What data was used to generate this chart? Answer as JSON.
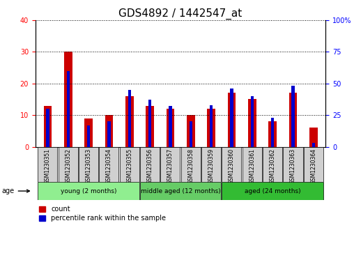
{
  "title": "GDS4892 / 1442547_at",
  "samples": [
    "GSM1230351",
    "GSM1230352",
    "GSM1230353",
    "GSM1230354",
    "GSM1230355",
    "GSM1230356",
    "GSM1230357",
    "GSM1230358",
    "GSM1230359",
    "GSM1230360",
    "GSM1230361",
    "GSM1230362",
    "GSM1230363",
    "GSM1230364"
  ],
  "counts": [
    13,
    30,
    9,
    10,
    16,
    13,
    12,
    10,
    12,
    17,
    15,
    8,
    17,
    6
  ],
  "percentiles": [
    30,
    60,
    17,
    20,
    45,
    37,
    32,
    20,
    33,
    46,
    40,
    23,
    48,
    3
  ],
  "left_ylim": [
    0,
    40
  ],
  "right_ylim": [
    0,
    100
  ],
  "left_yticks": [
    0,
    10,
    20,
    30,
    40
  ],
  "right_yticks": [
    0,
    25,
    50,
    75,
    100
  ],
  "right_yticklabels": [
    "0",
    "25",
    "50",
    "75",
    "100%"
  ],
  "bar_color_red": "#cc0000",
  "bar_color_blue": "#0000cc",
  "groups": [
    {
      "label": "young (2 months)",
      "start": 0,
      "end": 4,
      "color": "#90ee90"
    },
    {
      "label": "middle aged (12 months)",
      "start": 5,
      "end": 8,
      "color": "#66cc66"
    },
    {
      "label": "aged (24 months)",
      "start": 9,
      "end": 13,
      "color": "#33bb33"
    }
  ],
  "group_box_color": "#d0d0d0",
  "legend_count_label": "count",
  "legend_percentile_label": "percentile rank within the sample",
  "age_label": "age",
  "title_fontsize": 11,
  "tick_fontsize": 7,
  "label_fontsize": 8,
  "bar_width": 0.4,
  "blue_bar_width": 0.15
}
